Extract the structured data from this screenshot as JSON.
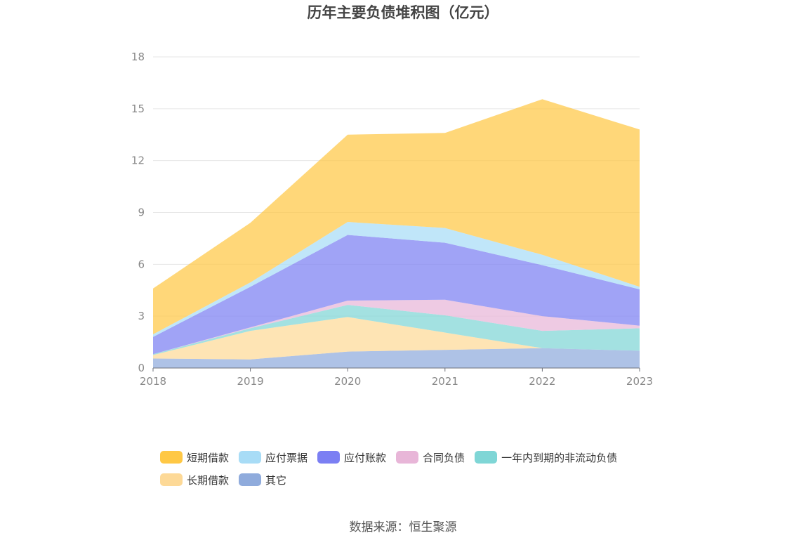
{
  "chart_data": {
    "type": "area",
    "stacked": true,
    "title": "历年主要负债堆积图（亿元）",
    "x": [
      "2018",
      "2019",
      "2020",
      "2021",
      "2022",
      "2023"
    ],
    "ylim": [
      0,
      18
    ],
    "yticks": [
      "0",
      "3",
      "6",
      "9",
      "12",
      "15",
      "18"
    ],
    "grid": true,
    "legend_position": "bottom",
    "series": [
      {
        "name": "其它",
        "color": "#8fabdc",
        "values": [
          0.55,
          0.5,
          0.95,
          1.05,
          1.15,
          1.0
        ]
      },
      {
        "name": "长期借款",
        "color": "#fdd997",
        "values": [
          0.2,
          1.65,
          2.0,
          1.0,
          0.0,
          0.0
        ]
      },
      {
        "name": "一年内到期的非流动负债",
        "color": "#7fd6d6",
        "values": [
          0.05,
          0.15,
          0.7,
          1.0,
          1.0,
          1.3
        ]
      },
      {
        "name": "合同负债",
        "color": "#e8b6d8",
        "values": [
          0.0,
          0.05,
          0.25,
          0.9,
          0.85,
          0.15
        ]
      },
      {
        "name": "应付账款",
        "color": "#7b7ff3",
        "values": [
          1.0,
          2.35,
          3.8,
          3.3,
          2.95,
          2.1
        ]
      },
      {
        "name": "应付票据",
        "color": "#a8dcf6",
        "values": [
          0.15,
          0.25,
          0.75,
          0.85,
          0.6,
          0.15
        ]
      },
      {
        "name": "短期借款",
        "color": "#ffc845",
        "values": [
          2.65,
          3.45,
          5.05,
          5.5,
          9.0,
          9.1
        ]
      }
    ],
    "legend_order": [
      "短期借款",
      "应付票据",
      "应付账款",
      "合同负债",
      "一年内到期的非流动负债",
      "长期借款",
      "其它"
    ]
  },
  "source": "数据来源：恒生聚源"
}
